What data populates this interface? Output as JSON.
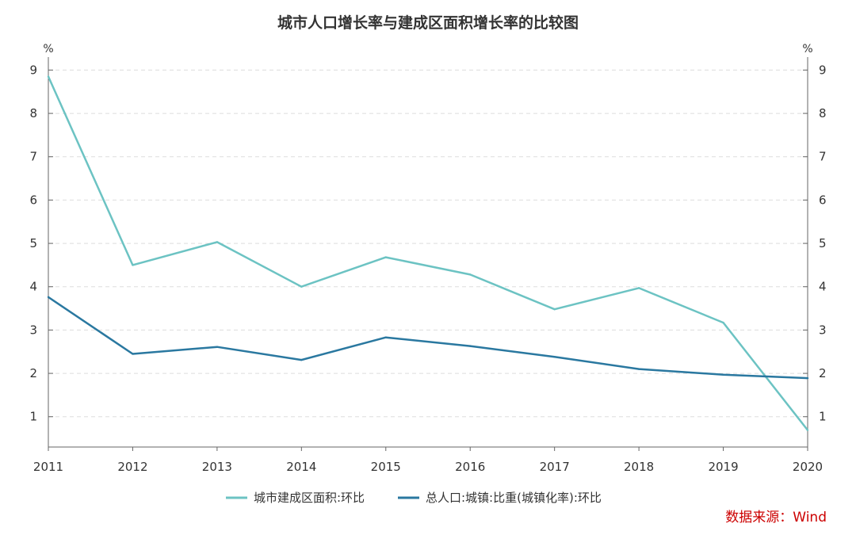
{
  "chart_data": {
    "type": "line",
    "title": "城市人口增长率与建成区面积增长率的比较图",
    "y_unit_left": "%",
    "y_unit_right": "%",
    "categories": [
      "2011",
      "2012",
      "2013",
      "2014",
      "2015",
      "2016",
      "2017",
      "2018",
      "2019",
      "2020"
    ],
    "ylim": [
      0.3,
      9.3
    ],
    "yticks": [
      "1",
      "2",
      "3",
      "4",
      "5",
      "6",
      "7",
      "8",
      "9"
    ],
    "grid": true,
    "legend_position": "bottom",
    "series": [
      {
        "name": "城市建成区面积:环比",
        "color": "#6cc3c3",
        "values": [
          8.85,
          4.5,
          5.03,
          4.0,
          4.68,
          4.28,
          3.48,
          3.97,
          3.17,
          0.69
        ]
      },
      {
        "name": "总人口:城镇:比重(城镇化率):环比",
        "color": "#2a78a0",
        "values": [
          3.76,
          2.45,
          2.61,
          2.31,
          2.83,
          2.63,
          2.38,
          2.1,
          1.97,
          1.89
        ]
      }
    ],
    "source": "数据来源：Wind"
  }
}
